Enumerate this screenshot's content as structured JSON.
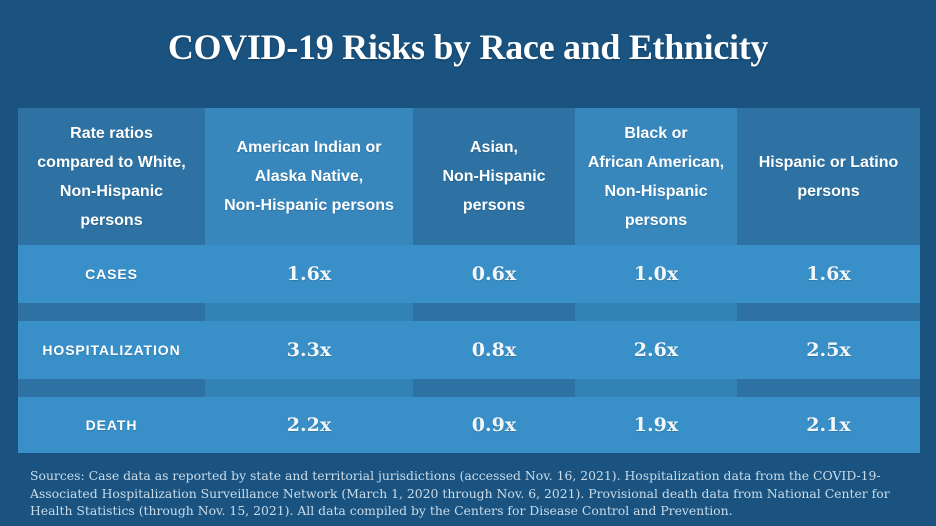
{
  "title": "COVID-19 Risks by Race and Ethnicity",
  "table": {
    "corner_header": "Rate ratios\ncompared to White,\nNon-Hispanic\npersons",
    "columns": [
      "American Indian or\nAlaska Native,\nNon-Hispanic persons",
      "Asian,\nNon-Hispanic\npersons",
      "Black or\nAfrican American,\nNon-Hispanic\npersons",
      "Hispanic or Latino\npersons"
    ],
    "rows": [
      {
        "label": "CASES",
        "values": [
          "1.6x",
          "0.6x",
          "1.0x",
          "1.6x"
        ]
      },
      {
        "label": "HOSPITALIZATION",
        "values": [
          "3.3x",
          "0.8x",
          "2.6x",
          "2.5x"
        ]
      },
      {
        "label": "DEATH",
        "values": [
          "2.2x",
          "0.9x",
          "1.9x",
          "2.1x"
        ]
      }
    ]
  },
  "footer": "Sources: Case data as reported by state and territorial jurisdictions (accessed Nov. 16, 2021). Hospitalization data from the COVID-19-Associated Hospitalization Surveillance Network (March 1, 2020 through Nov. 6, 2021). Provisional death data from National Center for Health Statistics (through Nov. 15, 2021). All data compiled by the Centers for Disease Control and Prevention.",
  "colors": {
    "background": "#1a5380",
    "column_dark": "#2d72a3",
    "column_light": "#3787bd",
    "row_band": "#3990c8",
    "separator_light": "#3283b5",
    "title_text": "#ffffff",
    "footer_text": "#c9dcea"
  },
  "chart_data": {
    "type": "table",
    "title": "COVID-19 Risks by Race and Ethnicity",
    "row_header": "Rate ratios compared to White, Non-Hispanic persons",
    "categories": [
      "American Indian or Alaska Native, Non-Hispanic persons",
      "Asian, Non-Hispanic persons",
      "Black or African American, Non-Hispanic persons",
      "Hispanic or Latino persons"
    ],
    "series": [
      {
        "name": "Cases",
        "values": [
          1.6,
          0.6,
          1.0,
          1.6
        ],
        "labels": [
          "1.6x",
          "0.6x",
          "1.0x",
          "1.6x"
        ]
      },
      {
        "name": "Hospitalization",
        "values": [
          3.3,
          0.8,
          2.6,
          2.5
        ],
        "labels": [
          "3.3x",
          "0.8x",
          "2.6x",
          "2.5x"
        ]
      },
      {
        "name": "Death",
        "values": [
          2.2,
          0.9,
          1.9,
          2.1
        ],
        "labels": [
          "2.2x",
          "0.9x",
          "1.9x",
          "2.1x"
        ]
      }
    ],
    "footnote": "Sources: Case data as reported by state and territorial jurisdictions (accessed Nov. 16, 2021). Hospitalization data from the COVID-19-Associated Hospitalization Surveillance Network (March 1, 2020 through Nov. 6, 2021). Provisional death data from National Center for Health Statistics (through Nov. 15, 2021). All data compiled by the Centers for Disease Control and Prevention."
  }
}
